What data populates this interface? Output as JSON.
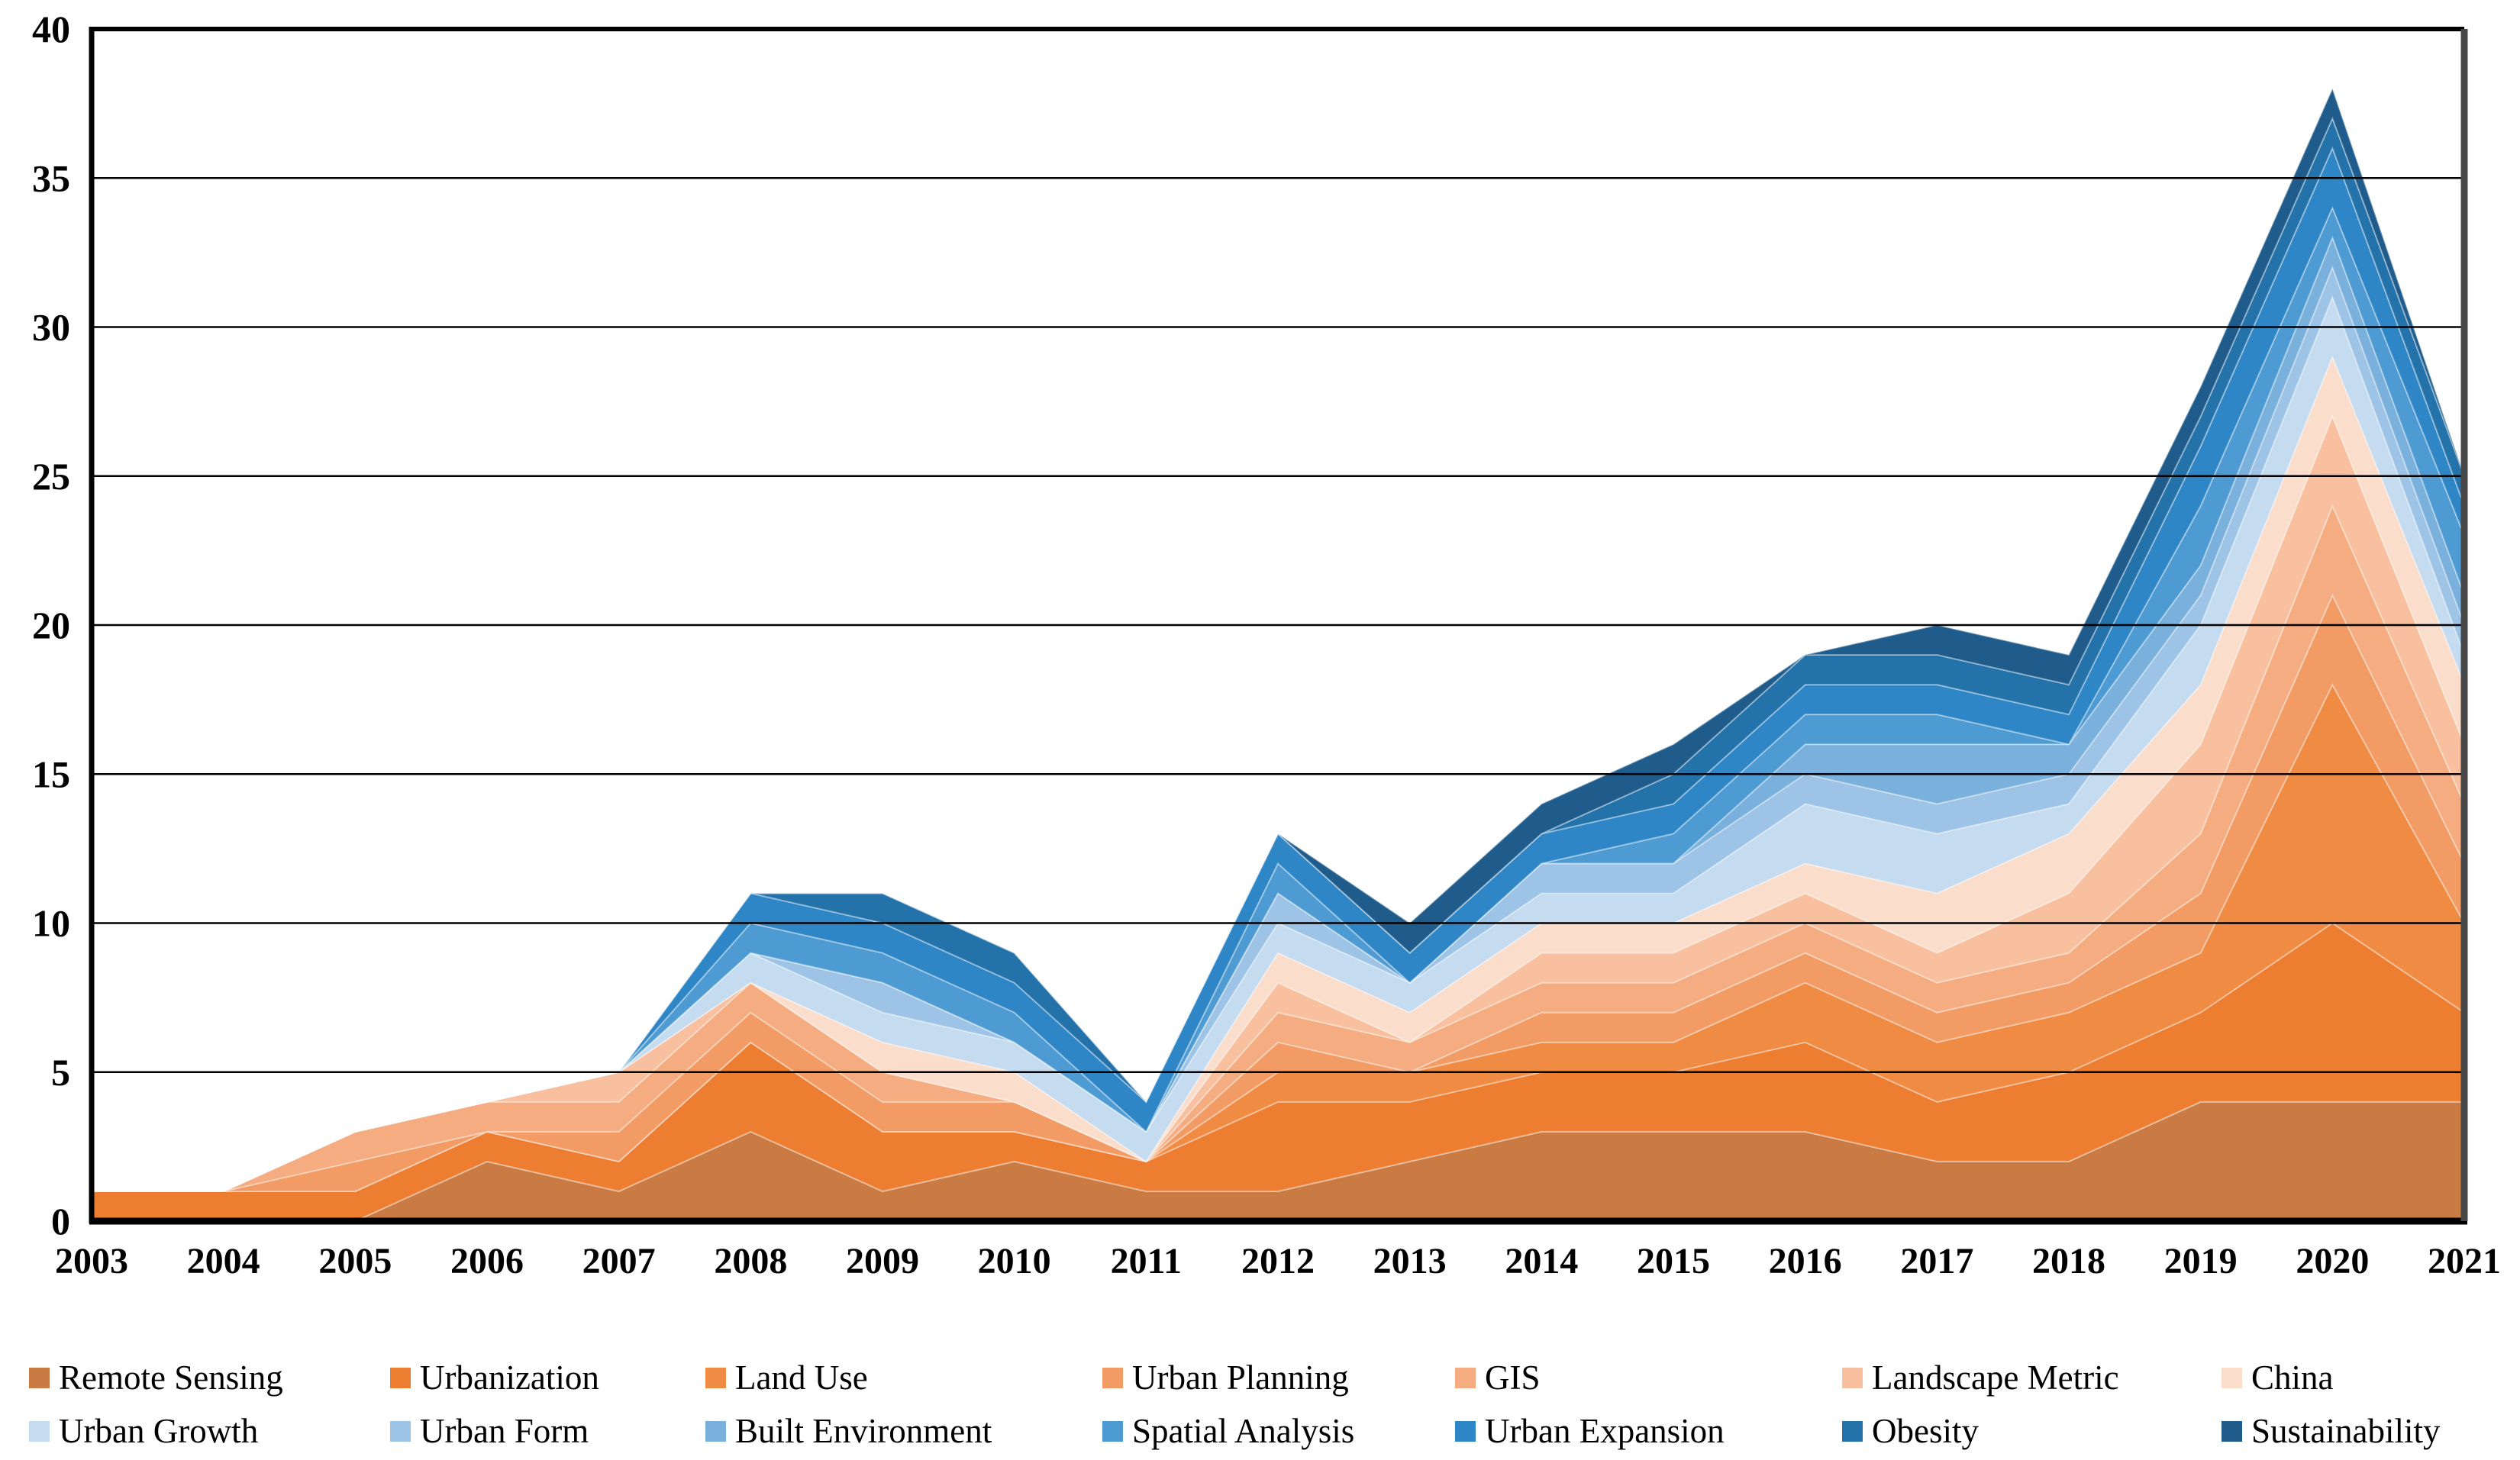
{
  "chart_data": {
    "type": "area",
    "stacked": true,
    "title": "",
    "xlabel": "",
    "ylabel": "",
    "x": [
      2003,
      2004,
      2005,
      2006,
      2007,
      2008,
      2009,
      2010,
      2011,
      2012,
      2013,
      2014,
      2015,
      2016,
      2017,
      2018,
      2019,
      2020,
      2021
    ],
    "ylim": [
      0,
      40
    ],
    "yticks": [
      0,
      5,
      10,
      15,
      20,
      25,
      30,
      35,
      40
    ],
    "grid": "horizontal",
    "legend_position": "bottom",
    "series": [
      {
        "name": "Remote Sensing",
        "color": "#CA7B44",
        "values": [
          0,
          0,
          0,
          2,
          1,
          3,
          1,
          2,
          1,
          1,
          2,
          3,
          3,
          3,
          2,
          2,
          4,
          4,
          4
        ]
      },
      {
        "name": "Urbanization",
        "color": "#ED7D31",
        "values": [
          1,
          1,
          1,
          1,
          1,
          3,
          2,
          1,
          1,
          3,
          2,
          2,
          2,
          3,
          2,
          3,
          3,
          6,
          3
        ]
      },
      {
        "name": "Land Use",
        "color": "#F08B44",
        "values": [
          0,
          0,
          0,
          0,
          0,
          0,
          0,
          0,
          0,
          1,
          1,
          1,
          1,
          2,
          2,
          2,
          2,
          8,
          3
        ]
      },
      {
        "name": "Urban Planning",
        "color": "#F29B64",
        "values": [
          0,
          0,
          1,
          0,
          1,
          1,
          1,
          1,
          0,
          1,
          0,
          1,
          1,
          1,
          1,
          1,
          2,
          3,
          2
        ]
      },
      {
        "name": "GIS",
        "color": "#F5AC80",
        "values": [
          0,
          0,
          1,
          1,
          1,
          1,
          1,
          0,
          0,
          1,
          1,
          1,
          1,
          1,
          1,
          1,
          2,
          3,
          2
        ]
      },
      {
        "name": "Landscape Metric",
        "color": "#F8C09E",
        "values": [
          0,
          0,
          0,
          0,
          1,
          0,
          0,
          0,
          0,
          1,
          0,
          1,
          1,
          1,
          1,
          2,
          3,
          3,
          2
        ]
      },
      {
        "name": "China",
        "color": "#FBDDCB",
        "values": [
          0,
          0,
          0,
          0,
          0,
          0,
          1,
          1,
          0,
          1,
          1,
          1,
          1,
          1,
          2,
          2,
          2,
          2,
          2
        ]
      },
      {
        "name": "Urban Growth",
        "color": "#C5DBEF",
        "values": [
          0,
          0,
          0,
          0,
          0,
          1,
          1,
          1,
          1,
          1,
          1,
          1,
          1,
          2,
          2,
          1,
          2,
          2,
          1
        ]
      },
      {
        "name": "Urban Form",
        "color": "#9DC3E6",
        "values": [
          0,
          0,
          0,
          0,
          0,
          0,
          1,
          0,
          0,
          1,
          0,
          1,
          1,
          1,
          1,
          1,
          1,
          1,
          1
        ]
      },
      {
        "name": "Built Environment",
        "color": "#79B0DC",
        "values": [
          0,
          0,
          0,
          0,
          0,
          0,
          0,
          0,
          0,
          0,
          0,
          0,
          0,
          1,
          2,
          1,
          1,
          1,
          1
        ]
      },
      {
        "name": "Spatial Analysis",
        "color": "#4E9BD4",
        "values": [
          0,
          0,
          0,
          0,
          0,
          1,
          1,
          1,
          0,
          1,
          0,
          0,
          1,
          1,
          1,
          0,
          2,
          1,
          2
        ]
      },
      {
        "name": "Urban Expansion",
        "color": "#2E86C6",
        "values": [
          0,
          0,
          0,
          0,
          0,
          1,
          1,
          1,
          1,
          1,
          1,
          1,
          1,
          1,
          1,
          1,
          2,
          2,
          1
        ]
      },
      {
        "name": "Obesity",
        "color": "#2472AA",
        "values": [
          0,
          0,
          0,
          0,
          0,
          0,
          1,
          1,
          0,
          0,
          0,
          0,
          1,
          1,
          1,
          1,
          1,
          1,
          1
        ]
      },
      {
        "name": "Sustainability",
        "color": "#1F5C8C",
        "values": [
          0,
          0,
          0,
          0,
          0,
          0,
          0,
          0,
          0,
          0,
          1,
          1,
          1,
          0,
          1,
          1,
          1,
          1,
          0
        ]
      }
    ]
  },
  "axes": {
    "y_tick_labels": [
      "0",
      "5",
      "10",
      "15",
      "20",
      "25",
      "30",
      "35",
      "40"
    ],
    "x_tick_labels": [
      "2003",
      "2004",
      "2005",
      "2006",
      "2007",
      "2008",
      "2009",
      "2010",
      "2011",
      "2012",
      "2013",
      "2014",
      "2015",
      "2016",
      "2017",
      "2018",
      "2019",
      "2020",
      "2021"
    ]
  },
  "legend": {
    "row1": [
      "Remote Sensing",
      "Urbanization",
      "Land Use",
      "Urban Planning",
      "GIS",
      "Landscape Metric",
      "China"
    ],
    "row2": [
      "Urban Growth",
      "Urban Form",
      "Built Environment",
      "Spatial Analysis",
      "Urban Expansion",
      "Obesity",
      "Sustainability"
    ]
  },
  "colors": {
    "grid_line": "#000000",
    "plot_border": "#000000",
    "right_border": "#474747",
    "band_separator": "rgba(255,255,255,0.35)"
  }
}
